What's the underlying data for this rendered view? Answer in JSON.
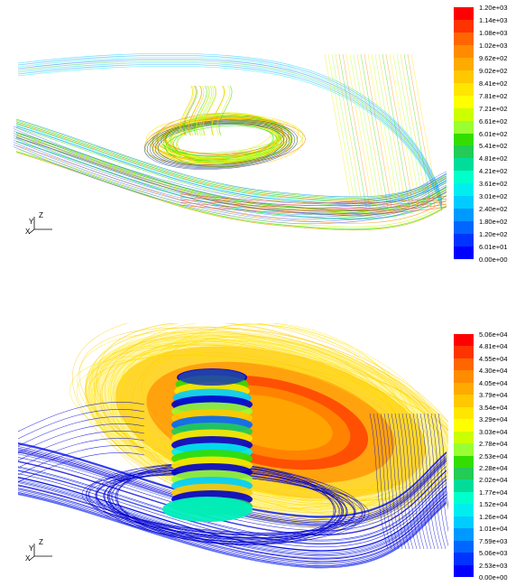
{
  "figures": [
    {
      "id": "top",
      "colorbar": {
        "labels": [
          "1.20e+03",
          "1.14e+03",
          "1.08e+03",
          "1.02e+03",
          "9.62e+02",
          "9.02e+02",
          "8.41e+02",
          "7.81e+02",
          "7.21e+02",
          "6.61e+02",
          "6.01e+02",
          "5.41e+02",
          "4.81e+02",
          "4.21e+02",
          "3.61e+02",
          "3.01e+02",
          "2.40e+02",
          "1.80e+02",
          "1.20e+02",
          "6.01e+01",
          "0.00e+00"
        ]
      },
      "axes": {
        "x": "X",
        "y": "Y",
        "z": "Z"
      }
    },
    {
      "id": "bottom",
      "colorbar": {
        "labels": [
          "5.06e+04",
          "4.81e+04",
          "4.55e+04",
          "4.30e+04",
          "4.05e+04",
          "3.79e+04",
          "3.54e+04",
          "3.29e+04",
          "3.03e+04",
          "2.78e+04",
          "2.53e+04",
          "2.28e+04",
          "2.02e+04",
          "1.77e+04",
          "1.52e+04",
          "1.26e+04",
          "1.01e+04",
          "7.59e+03",
          "5.06e+03",
          "2.53e+03",
          "0.00e+00"
        ]
      },
      "axes": {
        "x": "X",
        "y": "Y",
        "z": "Z"
      }
    }
  ],
  "colormap": [
    "#ff0000",
    "#ff3300",
    "#ff6600",
    "#ff8c00",
    "#ffaa00",
    "#ffc800",
    "#ffe600",
    "#ffff00",
    "#ccff00",
    "#99ff33",
    "#33dd00",
    "#22cc55",
    "#00dd99",
    "#00ffcc",
    "#00eeee",
    "#00ccff",
    "#0099ff",
    "#0066ff",
    "#0033ff",
    "#0000ff"
  ]
}
